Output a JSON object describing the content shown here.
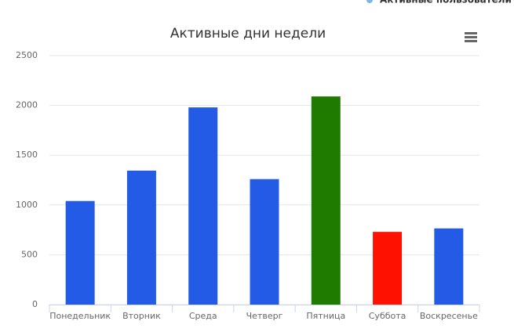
{
  "chart_data": {
    "type": "bar",
    "title": "Активные дни недели",
    "categories": [
      "Понедельник",
      "Вторник",
      "Среда",
      "Четверг",
      "Пятница",
      "Суббота",
      "Воскресенье"
    ],
    "series": [
      {
        "name": "Активные пользователи",
        "color": "#7cb5ec",
        "values": [
          1040,
          1345,
          1980,
          1260,
          2090,
          730,
          765
        ],
        "colors": [
          "#245be6",
          "#245be6",
          "#245be6",
          "#245be6",
          "#1f7a00",
          "#ff1100",
          "#245be6"
        ]
      }
    ],
    "ylim": [
      0,
      2500
    ],
    "yticks": [
      0,
      500,
      1000,
      1500,
      2000,
      2500
    ],
    "grid": true,
    "legend": "top-right"
  }
}
